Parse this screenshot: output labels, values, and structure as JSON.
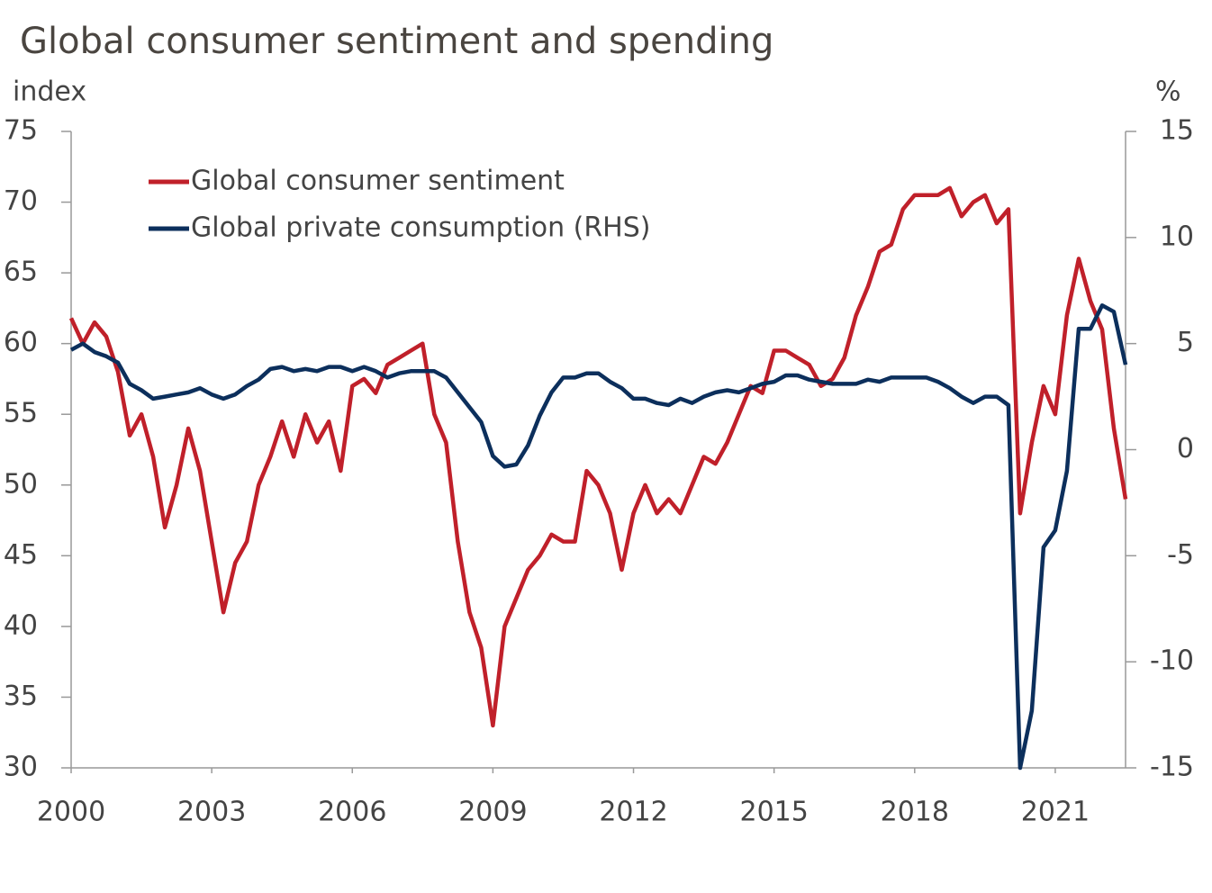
{
  "chart_data": {
    "type": "line",
    "title": "Global consumer sentiment and spending",
    "y_label": "index",
    "y2_label": "%",
    "x": [
      2000,
      2000.25,
      2000.5,
      2000.75,
      2001,
      2001.25,
      2001.5,
      2001.75,
      2002,
      2002.25,
      2002.5,
      2002.75,
      2003,
      2003.25,
      2003.5,
      2003.75,
      2004,
      2004.25,
      2004.5,
      2004.75,
      2005,
      2005.25,
      2005.5,
      2005.75,
      2006,
      2006.25,
      2006.5,
      2006.75,
      2007,
      2007.25,
      2007.5,
      2007.75,
      2008,
      2008.25,
      2008.5,
      2008.75,
      2009,
      2009.25,
      2009.5,
      2009.75,
      2010,
      2010.25,
      2010.5,
      2010.75,
      2011,
      2011.25,
      2011.5,
      2011.75,
      2012,
      2012.25,
      2012.5,
      2012.75,
      2013,
      2013.25,
      2013.5,
      2013.75,
      2014,
      2014.25,
      2014.5,
      2014.75,
      2015,
      2015.25,
      2015.5,
      2015.75,
      2016,
      2016.25,
      2016.5,
      2016.75,
      2017,
      2017.25,
      2017.5,
      2017.75,
      2018,
      2018.25,
      2018.5,
      2018.75,
      2019,
      2019.25,
      2019.5,
      2019.75,
      2020,
      2020.25,
      2020.5,
      2020.75,
      2021,
      2021.25,
      2021.5,
      2021.75,
      2022,
      2022.25,
      2022.5
    ],
    "series": [
      {
        "name": "Global consumer sentiment",
        "color": "#c0202a",
        "axis": "y",
        "values": [
          61.8,
          60,
          61.5,
          60.5,
          58,
          53.5,
          55,
          52,
          47,
          50,
          54,
          51,
          46,
          41,
          44.5,
          46,
          50,
          52,
          54.5,
          52,
          55,
          53,
          54.5,
          51,
          57,
          57.5,
          56.5,
          58.5,
          59,
          59.5,
          60,
          55,
          53,
          46,
          41,
          38.5,
          33,
          40,
          42,
          44,
          45,
          46.5,
          46,
          46,
          51,
          50,
          48,
          44,
          48,
          50,
          48,
          49,
          48,
          50,
          52,
          51.5,
          53,
          55,
          57,
          56.5,
          59.5,
          59.5,
          59,
          58.5,
          57,
          57.5,
          59,
          62,
          64,
          66.5,
          67,
          69.5,
          70.5,
          70.5,
          70.5,
          71,
          69,
          70,
          70.5,
          68.5,
          69.5,
          48,
          53,
          57,
          55,
          62,
          66,
          63,
          61,
          54,
          49
        ]
      },
      {
        "name": "Global private consumption (RHS)",
        "color": "#0c2f5c",
        "axis": "y2",
        "values": [
          4.7,
          5,
          4.6,
          4.4,
          4.1,
          3.1,
          2.8,
          2.4,
          2.5,
          2.6,
          2.7,
          2.9,
          2.6,
          2.4,
          2.6,
          3.0,
          3.3,
          3.8,
          3.9,
          3.7,
          3.8,
          3.7,
          3.9,
          3.9,
          3.7,
          3.9,
          3.7,
          3.4,
          3.6,
          3.7,
          3.7,
          3.7,
          3.4,
          2.7,
          2.0,
          1.3,
          -0.3,
          -0.8,
          -0.7,
          0.2,
          1.6,
          2.7,
          3.4,
          3.4,
          3.6,
          3.6,
          3.2,
          2.9,
          2.4,
          2.4,
          2.2,
          2.1,
          2.4,
          2.2,
          2.5,
          2.7,
          2.8,
          2.7,
          2.9,
          3.1,
          3.2,
          3.5,
          3.5,
          3.3,
          3.2,
          3.1,
          3.1,
          3.1,
          3.3,
          3.2,
          3.4,
          3.4,
          3.4,
          3.4,
          3.2,
          2.9,
          2.5,
          2.2,
          2.5,
          2.5,
          2.1,
          -15,
          -12.3,
          -4.6,
          -3.8,
          -1.0,
          5.7,
          5.7,
          6.8,
          6.5,
          4.0
        ]
      }
    ],
    "xlim": [
      2000,
      2022.5
    ],
    "xticks": [
      2000,
      2003,
      2006,
      2009,
      2012,
      2015,
      2018,
      2021
    ],
    "ylim": [
      30,
      75
    ],
    "yticks": [
      30,
      35,
      40,
      45,
      50,
      55,
      60,
      65,
      70,
      75
    ],
    "y2lim": [
      -15,
      15
    ],
    "y2ticks": [
      -15,
      -10,
      -5,
      0,
      5,
      10,
      15
    ],
    "grid": false,
    "legend": "upper left"
  }
}
